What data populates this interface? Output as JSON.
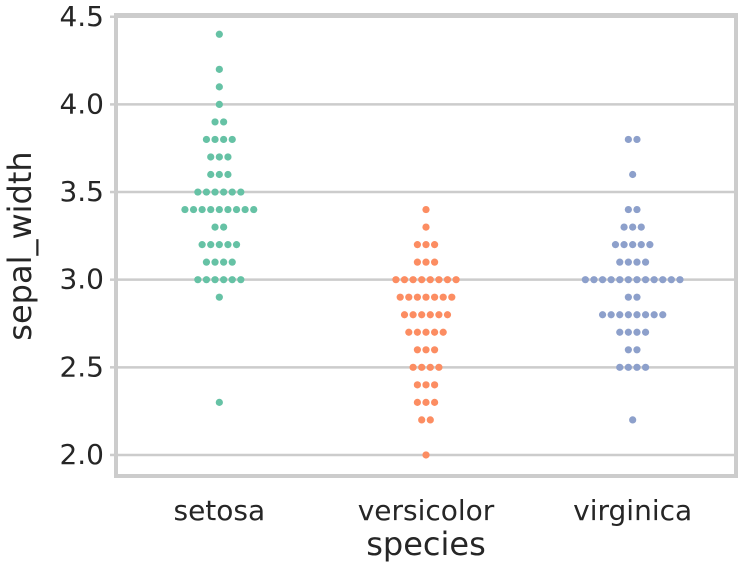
{
  "chart_data": {
    "type": "swarm",
    "x_label": "species",
    "y_label": "sepal_width",
    "categories": [
      "setosa",
      "versicolor",
      "virginica"
    ],
    "colors": [
      "#66c2a5",
      "#fc8d62",
      "#8da0cb"
    ],
    "values": [
      [
        3.5,
        3.0,
        3.2,
        3.1,
        3.6,
        3.9,
        3.4,
        3.4,
        2.9,
        3.1,
        3.7,
        3.4,
        3.0,
        3.0,
        4.0,
        4.4,
        3.9,
        3.5,
        3.8,
        3.8,
        3.4,
        3.7,
        3.6,
        3.3,
        3.4,
        3.0,
        3.4,
        3.5,
        3.4,
        3.2,
        3.1,
        3.4,
        4.1,
        4.2,
        3.1,
        3.2,
        3.5,
        3.6,
        3.0,
        3.4,
        3.5,
        2.3,
        3.2,
        3.5,
        3.8,
        3.0,
        3.8,
        3.2,
        3.7,
        3.3
      ],
      [
        3.2,
        3.2,
        3.1,
        2.3,
        2.8,
        2.8,
        3.3,
        2.4,
        2.9,
        2.7,
        2.0,
        3.0,
        2.2,
        2.9,
        2.9,
        3.1,
        3.0,
        2.7,
        2.2,
        2.5,
        3.2,
        2.8,
        2.5,
        2.8,
        2.9,
        3.0,
        2.8,
        3.0,
        2.9,
        2.6,
        2.4,
        2.4,
        2.7,
        2.7,
        3.0,
        3.4,
        3.1,
        2.3,
        3.0,
        2.5,
        2.6,
        3.0,
        2.6,
        2.3,
        2.7,
        3.0,
        2.9,
        2.9,
        2.5,
        2.8
      ],
      [
        3.3,
        2.7,
        3.0,
        2.9,
        3.0,
        3.0,
        2.5,
        2.9,
        2.5,
        3.6,
        3.2,
        2.7,
        3.0,
        2.5,
        2.8,
        3.2,
        3.0,
        3.8,
        2.6,
        2.2,
        3.2,
        2.8,
        2.8,
        2.7,
        3.3,
        3.2,
        2.8,
        3.0,
        2.8,
        3.0,
        2.8,
        3.8,
        2.8,
        2.8,
        2.6,
        3.0,
        3.4,
        3.1,
        3.0,
        3.1,
        3.1,
        3.1,
        2.7,
        3.2,
        3.3,
        3.0,
        2.5,
        3.0,
        3.4,
        3.0
      ]
    ],
    "ylim": [
      1.88,
      4.51
    ],
    "yticks": [
      {
        "value": 2,
        "label": "2.0"
      },
      2.5,
      {
        "value": 3,
        "label": "3.0"
      },
      3.5,
      {
        "value": 4,
        "label": "4.0"
      },
      4.5
    ],
    "grid": true
  }
}
